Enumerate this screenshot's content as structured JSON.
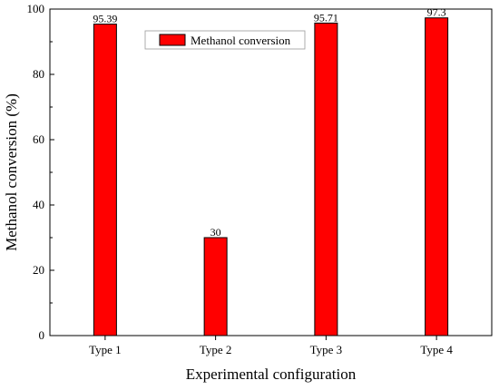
{
  "chart_data": {
    "type": "bar",
    "categories": [
      "Type 1",
      "Type 2",
      "Type 3",
      "Type 4"
    ],
    "series": [
      {
        "name": "Methanol conversion",
        "values": [
          95.39,
          30,
          95.71,
          97.3
        ]
      }
    ],
    "data_labels": [
      "95.39",
      "30",
      "95.71",
      "97.3"
    ],
    "xlabel": "Experimental configuration",
    "ylabel": "Methanol conversion (%)",
    "ylim": [
      0,
      100
    ],
    "yticks": [
      0,
      20,
      40,
      60,
      80,
      100
    ],
    "grid": false,
    "legend_position": "top-center",
    "colors": {
      "bar": "#ff0000",
      "bar_outline": "#000000",
      "axis": "#000000"
    }
  }
}
